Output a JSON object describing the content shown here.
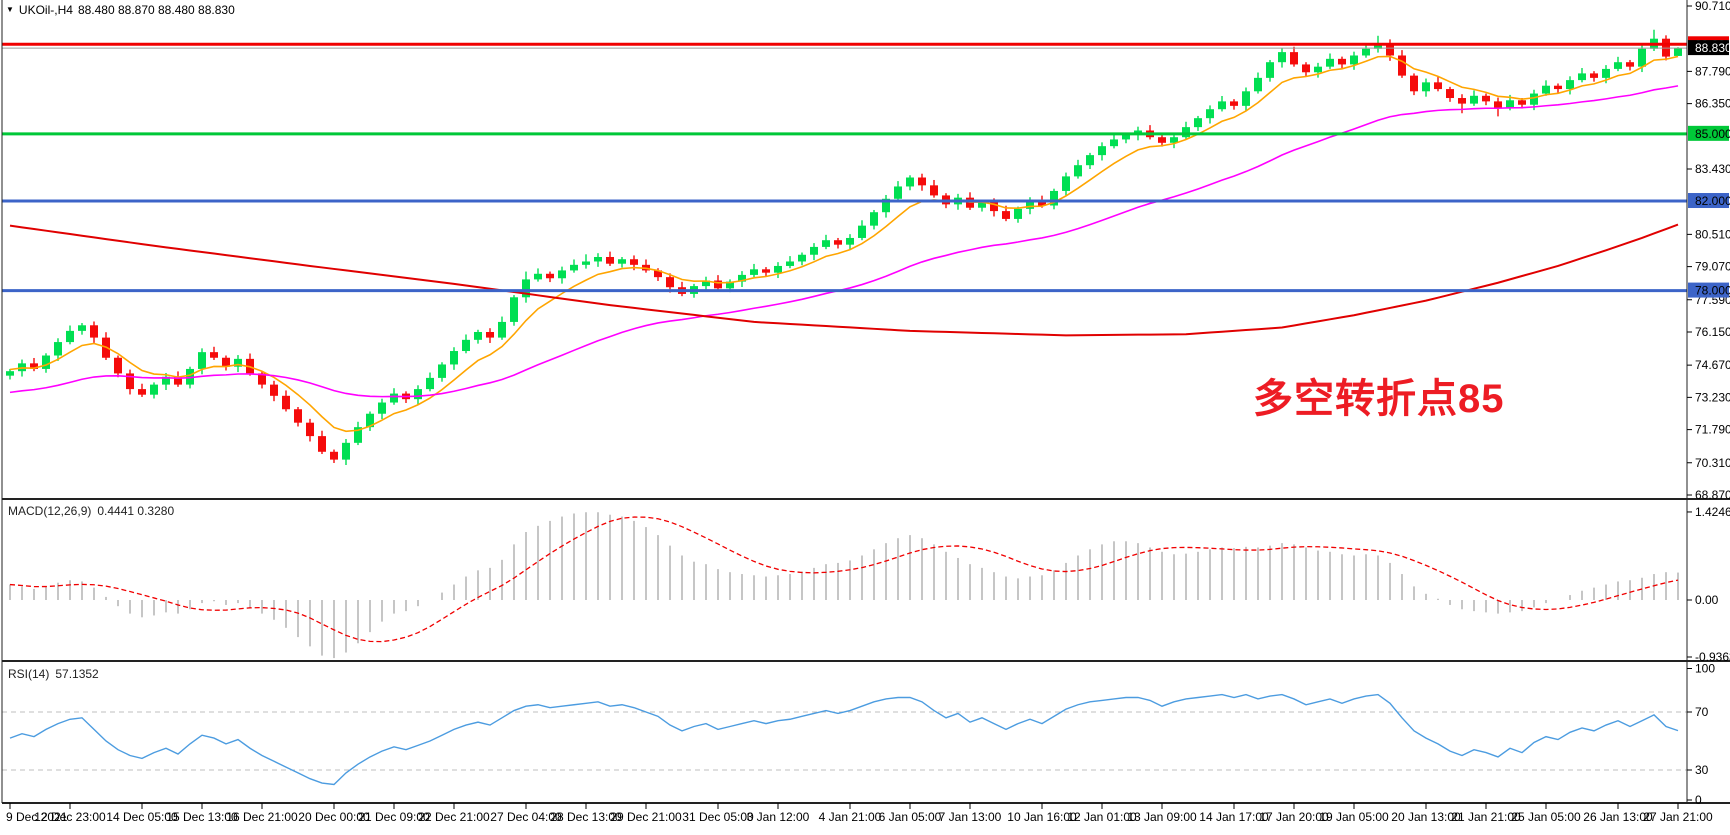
{
  "symbol_bar": {
    "symbol": "UKOil-,H4",
    "ohlc_readout": "88.480 88.870 88.480 88.830"
  },
  "annotation": {
    "text": "多空转折点85",
    "color": "#ed1c24"
  },
  "macd_panel": {
    "name": "MACD(12,26,9)",
    "values": "0.4441 0.3280",
    "axis_labels": [
      {
        "v": 1.4246,
        "label": "1.4246"
      },
      {
        "v": 0,
        "label": "0.00"
      },
      {
        "v": -0.9363,
        "label": "-0.9363"
      }
    ]
  },
  "rsi_panel": {
    "name": "RSI(14)",
    "value": "57.1352",
    "axis_labels": [
      {
        "v": 100,
        "label": "100"
      },
      {
        "v": 70,
        "label": "70"
      },
      {
        "v": 30,
        "label": "30"
      },
      {
        "v": 0,
        "label": "0"
      }
    ],
    "levels": [
      70,
      30
    ]
  },
  "price_axis": {
    "ticks": [
      {
        "price": 90.71,
        "label": "90.710"
      },
      {
        "price": 87.79,
        "label": "87.790"
      },
      {
        "price": 86.35,
        "label": "86.350"
      },
      {
        "price": 83.43,
        "label": "83.430"
      },
      {
        "price": 80.51,
        "label": "80.510"
      },
      {
        "price": 79.07,
        "label": "79.070"
      },
      {
        "price": 77.59,
        "label": "77.590"
      },
      {
        "price": 76.15,
        "label": "76.150"
      },
      {
        "price": 74.67,
        "label": "74.670"
      },
      {
        "price": 73.23,
        "label": "73.230"
      },
      {
        "price": 71.79,
        "label": "71.790"
      },
      {
        "price": 70.31,
        "label": "70.310"
      },
      {
        "price": 68.87,
        "label": "68.870"
      }
    ],
    "badges": [
      {
        "price": 89.0,
        "label": "89.000",
        "bg": "#f00000",
        "fg": "#ffffff"
      },
      {
        "price": 88.83,
        "label": "88.830",
        "bg": "#000000",
        "fg": "#ffffff"
      },
      {
        "price": 85.0,
        "label": "85.000",
        "bg": "#00c838",
        "fg": "#000000"
      },
      {
        "price": 82.0,
        "label": "82.000",
        "bg": "#3c64c8",
        "fg": "#000000"
      },
      {
        "price": 78.0,
        "label": "78.000",
        "bg": "#3c64c8",
        "fg": "#000000"
      }
    ]
  },
  "time_axis": {
    "labels": [
      "9 Dec 2021",
      "12 Dec 23:00",
      "14 Dec 05:00",
      "15 Dec 13:00",
      "16 Dec 21:00",
      "20 Dec 00:00",
      "21 Dec 09:00",
      "22 Dec 21:00",
      "27 Dec 04:00",
      "28 Dec 13:00",
      "29 Dec 21:00",
      "31 Dec 05:00",
      "3 Jan 12:00",
      "4 Jan 21:00",
      "6 Jan 05:00",
      "7 Jan 13:00",
      "10 Jan 16:00",
      "12 Jan 01:00",
      "13 Jan 09:00",
      "14 Jan 17:00",
      "17 Jan 20:00",
      "19 Jan 05:00",
      "20 Jan 13:00",
      "21 Jan 21:00",
      "25 Jan 05:00",
      "26 Jan 13:00",
      "27 Jan 21:00"
    ]
  },
  "chart_data": {
    "type": "candlestick",
    "symbol": "UKOil-",
    "timeframe": "H4",
    "title": "UKOil-,H4 88.480 88.870 88.480 88.830",
    "ylim": [
      68.87,
      90.71
    ],
    "last_candle_ohlc": {
      "open": 88.48,
      "high": 88.87,
      "low": 88.48,
      "close": 88.83
    },
    "first_open": 74.2,
    "closes": [
      74.4,
      74.75,
      74.5,
      75.1,
      75.7,
      76.2,
      76.45,
      75.9,
      75.0,
      74.3,
      73.6,
      73.35,
      73.8,
      74.15,
      73.8,
      74.5,
      75.25,
      75.0,
      74.6,
      74.95,
      74.3,
      73.8,
      73.3,
      72.7,
      72.1,
      71.5,
      70.8,
      70.45,
      71.2,
      71.9,
      72.5,
      73.0,
      73.4,
      73.15,
      73.6,
      74.1,
      74.7,
      75.3,
      75.8,
      76.15,
      75.9,
      76.6,
      77.7,
      78.5,
      78.75,
      78.55,
      78.9,
      79.15,
      79.3,
      79.5,
      79.2,
      79.4,
      79.15,
      78.9,
      78.6,
      78.15,
      77.85,
      78.2,
      78.45,
      78.1,
      78.4,
      78.7,
      78.95,
      78.8,
      79.1,
      79.3,
      79.6,
      79.95,
      80.25,
      80.05,
      80.35,
      80.9,
      81.5,
      82.1,
      82.65,
      83.05,
      82.7,
      82.25,
      81.85,
      82.15,
      81.7,
      81.95,
      81.55,
      81.2,
      81.65,
      82.0,
      81.8,
      82.45,
      83.1,
      83.6,
      84.05,
      84.45,
      84.75,
      84.95,
      85.15,
      84.85,
      84.6,
      84.85,
      85.3,
      85.7,
      86.1,
      86.45,
      86.25,
      86.9,
      87.5,
      88.2,
      88.65,
      88.1,
      87.75,
      88.0,
      88.35,
      88.1,
      88.5,
      88.8,
      89.05,
      88.5,
      87.6,
      86.9,
      87.3,
      87.0,
      86.6,
      86.35,
      86.7,
      86.45,
      86.15,
      86.5,
      86.3,
      86.8,
      87.15,
      87.0,
      87.4,
      87.7,
      87.5,
      87.9,
      88.2,
      88.0,
      88.8,
      89.25,
      88.45,
      88.83
    ],
    "candle_overrides": {
      "27": {
        "low": 70.3
      },
      "43": {
        "high": 78.85
      },
      "48": {
        "high": 79.62
      },
      "114": {
        "high": 89.38
      },
      "121": {
        "low": 85.92
      },
      "124": {
        "low": 85.78
      },
      "137": {
        "high": 89.65
      },
      "138": {
        "high": 89.4
      },
      "139": {
        "open": 88.48,
        "high": 88.87,
        "low": 88.48,
        "close": 88.83
      }
    },
    "hlines": [
      {
        "price": 89.0,
        "color": "#f00000",
        "width": 3,
        "name": "resistance-89"
      },
      {
        "price": 85.0,
        "color": "#00c838",
        "width": 3,
        "name": "pivot-85"
      },
      {
        "price": 82.0,
        "color": "#3c64c8",
        "width": 3,
        "name": "support-82"
      },
      {
        "price": 78.0,
        "color": "#3c64c8",
        "width": 3,
        "name": "support-78"
      },
      {
        "price": 88.83,
        "color": "#9a9a9a",
        "width": 1,
        "name": "current-price-line"
      }
    ],
    "ma_fast": {
      "color": "#ffa500",
      "period": 7,
      "seed": 74.5
    },
    "ma_mid": {
      "color": "#ff00ff",
      "period": 36,
      "seed": 73.4
    },
    "ma_slow": {
      "color": "#e00000",
      "anchors": [
        [
          0,
          80.9
        ],
        [
          12,
          80.0
        ],
        [
          25,
          79.1
        ],
        [
          37,
          78.3
        ],
        [
          50,
          77.35
        ],
        [
          62,
          76.6
        ],
        [
          75,
          76.2
        ],
        [
          88,
          76.0
        ],
        [
          98,
          76.05
        ],
        [
          106,
          76.35
        ],
        [
          112,
          76.9
        ],
        [
          118,
          77.55
        ],
        [
          124,
          78.35
        ],
        [
          129,
          79.1
        ],
        [
          133,
          79.8
        ],
        [
          136,
          80.35
        ],
        [
          139,
          80.95
        ]
      ]
    },
    "macd": {
      "hist_color": "#c6c6c6",
      "signal_color": "#f00000",
      "signal_period": 9,
      "ylim": [
        -0.97,
        1.62
      ],
      "hist": [
        0.25,
        0.22,
        0.18,
        0.22,
        0.28,
        0.32,
        0.3,
        0.2,
        0.05,
        -0.1,
        -0.22,
        -0.28,
        -0.25,
        -0.2,
        -0.22,
        -0.15,
        -0.05,
        -0.02,
        -0.08,
        -0.05,
        -0.12,
        -0.22,
        -0.32,
        -0.45,
        -0.6,
        -0.75,
        -0.9,
        -0.94,
        -0.85,
        -0.7,
        -0.52,
        -0.35,
        -0.22,
        -0.18,
        -0.1,
        0.0,
        0.12,
        0.25,
        0.38,
        0.48,
        0.52,
        0.65,
        0.9,
        1.1,
        1.2,
        1.28,
        1.35,
        1.4,
        1.42,
        1.42,
        1.38,
        1.35,
        1.28,
        1.18,
        1.05,
        0.88,
        0.72,
        0.62,
        0.58,
        0.5,
        0.45,
        0.42,
        0.4,
        0.38,
        0.4,
        0.42,
        0.46,
        0.52,
        0.58,
        0.6,
        0.64,
        0.72,
        0.82,
        0.92,
        1.0,
        1.05,
        1.0,
        0.9,
        0.78,
        0.68,
        0.58,
        0.52,
        0.45,
        0.38,
        0.35,
        0.38,
        0.4,
        0.48,
        0.6,
        0.72,
        0.82,
        0.9,
        0.95,
        0.95,
        0.92,
        0.85,
        0.78,
        0.74,
        0.75,
        0.78,
        0.82,
        0.85,
        0.84,
        0.86,
        0.85,
        0.88,
        0.92,
        0.9,
        0.85,
        0.8,
        0.78,
        0.74,
        0.72,
        0.74,
        0.72,
        0.6,
        0.42,
        0.22,
        0.1,
        0.02,
        -0.08,
        -0.15,
        -0.18,
        -0.2,
        -0.22,
        -0.2,
        -0.18,
        -0.12,
        -0.05,
        0.0,
        0.08,
        0.15,
        0.2,
        0.25,
        0.3,
        0.32,
        0.36,
        0.42,
        0.45,
        0.4441
      ]
    },
    "rsi": {
      "color": "#4c9ce0",
      "ylim": [
        0,
        100
      ],
      "values": [
        52,
        55,
        53,
        58,
        62,
        65,
        66,
        58,
        50,
        44,
        40,
        38,
        42,
        45,
        41,
        48,
        54,
        52,
        48,
        51,
        45,
        40,
        36,
        32,
        28,
        24,
        21,
        20,
        28,
        34,
        39,
        43,
        46,
        44,
        47,
        50,
        54,
        58,
        61,
        63,
        61,
        66,
        71,
        74,
        75,
        73,
        74,
        75,
        76,
        77,
        74,
        75,
        73,
        70,
        67,
        61,
        57,
        60,
        62,
        58,
        60,
        62,
        64,
        62,
        64,
        65,
        67,
        69,
        71,
        69,
        71,
        74,
        77,
        79,
        80,
        80,
        77,
        71,
        66,
        69,
        63,
        66,
        62,
        58,
        62,
        65,
        62,
        67,
        72,
        75,
        77,
        78,
        79,
        80,
        80,
        78,
        74,
        77,
        79,
        80,
        81,
        82,
        80,
        82,
        79,
        81,
        82,
        79,
        75,
        77,
        79,
        76,
        79,
        81,
        82,
        76,
        66,
        57,
        52,
        48,
        43,
        40,
        44,
        42,
        39,
        45,
        42,
        49,
        53,
        51,
        56,
        59,
        57,
        61,
        64,
        60,
        64,
        68,
        60,
        57.14
      ]
    }
  },
  "colors": {
    "up_candle": "#00df52",
    "down_candle": "#f50b0b",
    "panel_border": "#222222",
    "axis_text": "#000000",
    "rsi_level_dash": "#bfbfbf"
  }
}
